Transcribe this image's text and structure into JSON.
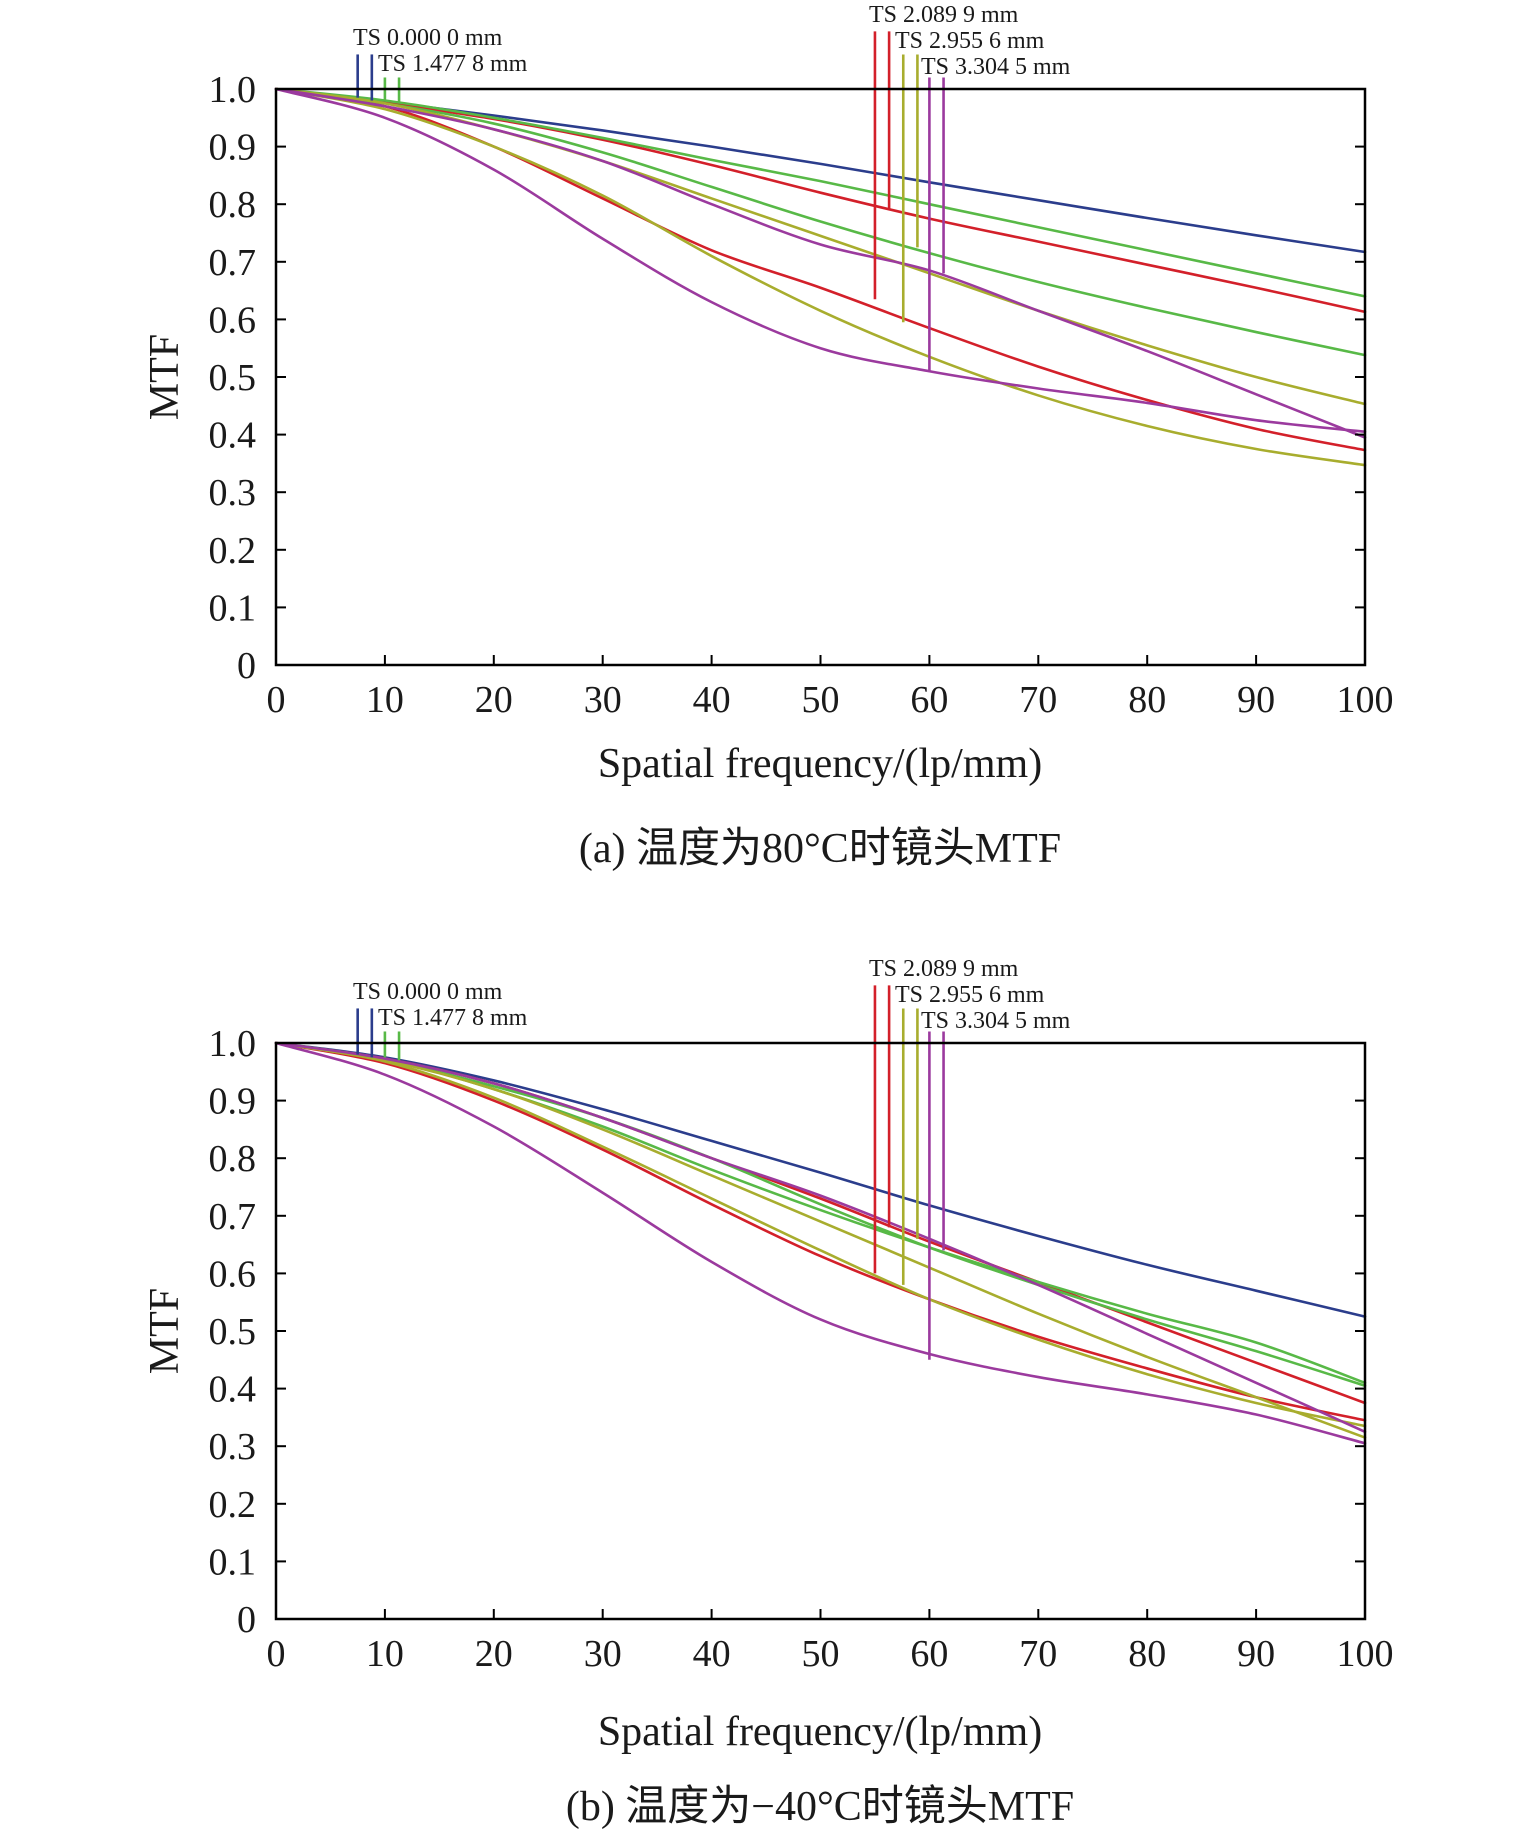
{
  "colors": {
    "blue": "#2b3d8c",
    "red": "#d3202a",
    "green": "#58b947",
    "olive": "#a8ad2e",
    "purple": "#9b3a9e"
  },
  "chart_data": [
    {
      "type": "line",
      "caption": "(a) 温度为80°C时镜头MTF",
      "xlabel": "Spatial frequency/(lp/mm)",
      "ylabel": "MTF",
      "xlim": [
        0,
        100
      ],
      "ylim": [
        0,
        1.0
      ],
      "xticks": [
        "0",
        "10",
        "20",
        "30",
        "40",
        "50",
        "60",
        "70",
        "80",
        "90",
        "100"
      ],
      "yticks": [
        "0",
        "0.1",
        "0.2",
        "0.3",
        "0.4",
        "0.5",
        "0.6",
        "0.7",
        "0.8",
        "0.9",
        "1.0"
      ],
      "grid": false,
      "legend_labels": [
        "TS 0.000 0 mm",
        "TS 1.477 8 mm",
        "TS 2.089 9 mm",
        "TS 2.955 6 mm",
        "TS 3.304 5 mm"
      ],
      "markers": [
        {
          "color": "blue",
          "x": 7.5,
          "y_top": 1.06,
          "y_bottom": 0.985
        },
        {
          "color": "blue",
          "x": 8.8,
          "y_top": 1.06,
          "y_bottom": 0.98
        },
        {
          "color": "green",
          "x": 10.0,
          "y_top": 1.02,
          "y_bottom": 0.98
        },
        {
          "color": "green",
          "x": 11.3,
          "y_top": 1.02,
          "y_bottom": 0.975
        },
        {
          "color": "red",
          "x": 55.0,
          "y_top": 1.1,
          "y_bottom": 0.635
        },
        {
          "color": "red",
          "x": 56.3,
          "y_top": 1.1,
          "y_bottom": 0.79
        },
        {
          "color": "olive",
          "x": 57.6,
          "y_top": 1.06,
          "y_bottom": 0.595
        },
        {
          "color": "olive",
          "x": 58.9,
          "y_top": 1.06,
          "y_bottom": 0.725
        },
        {
          "color": "purple",
          "x": 60.0,
          "y_top": 1.02,
          "y_bottom": 0.51
        },
        {
          "color": "purple",
          "x": 61.3,
          "y_top": 1.02,
          "y_bottom": 0.68
        }
      ],
      "x": [
        0,
        10,
        20,
        30,
        40,
        50,
        60,
        70,
        80,
        90,
        100
      ],
      "series": [
        {
          "color": "blue",
          "values": [
            1.0,
            0.978,
            0.954,
            0.928,
            0.9,
            0.87,
            0.838,
            0.807,
            0.776,
            0.746,
            0.717
          ]
        },
        {
          "color": "red",
          "values": [
            1.0,
            0.976,
            0.948,
            0.912,
            0.868,
            0.82,
            0.775,
            0.735,
            0.695,
            0.655,
            0.613
          ]
        },
        {
          "color": "red",
          "values": [
            1.0,
            0.97,
            0.9,
            0.81,
            0.72,
            0.655,
            0.585,
            0.518,
            0.46,
            0.41,
            0.373
          ]
        },
        {
          "color": "green",
          "values": [
            1.0,
            0.98,
            0.95,
            0.915,
            0.877,
            0.84,
            0.8,
            0.76,
            0.72,
            0.68,
            0.64
          ]
        },
        {
          "color": "green",
          "values": [
            1.0,
            0.975,
            0.94,
            0.89,
            0.83,
            0.77,
            0.715,
            0.665,
            0.62,
            0.578,
            0.538
          ]
        },
        {
          "color": "olive",
          "values": [
            1.0,
            0.975,
            0.93,
            0.875,
            0.81,
            0.745,
            0.68,
            0.615,
            0.555,
            0.5,
            0.453
          ]
        },
        {
          "color": "olive",
          "values": [
            1.0,
            0.965,
            0.9,
            0.815,
            0.71,
            0.615,
            0.535,
            0.468,
            0.415,
            0.375,
            0.347
          ]
        },
        {
          "color": "purple",
          "values": [
            1.0,
            0.97,
            0.93,
            0.875,
            0.8,
            0.73,
            0.685,
            0.615,
            0.545,
            0.47,
            0.395
          ]
        },
        {
          "color": "purple",
          "values": [
            1.0,
            0.95,
            0.86,
            0.74,
            0.63,
            0.55,
            0.51,
            0.48,
            0.455,
            0.425,
            0.405
          ]
        }
      ]
    },
    {
      "type": "line",
      "caption": "(b) 温度为−40°C时镜头MTF",
      "xlabel": "Spatial frequency/(lp/mm)",
      "ylabel": "MTF",
      "xlim": [
        0,
        100
      ],
      "ylim": [
        0,
        1.0
      ],
      "xticks": [
        "0",
        "10",
        "20",
        "30",
        "40",
        "50",
        "60",
        "70",
        "80",
        "90",
        "100"
      ],
      "yticks": [
        "0",
        "0.1",
        "0.2",
        "0.3",
        "0.4",
        "0.5",
        "0.6",
        "0.7",
        "0.8",
        "0.9",
        "1.0"
      ],
      "grid": false,
      "legend_labels": [
        "TS 0.000 0 mm",
        "TS 1.477 8 mm",
        "TS 2.089 9 mm",
        "TS 2.955 6 mm",
        "TS 3.304 5 mm"
      ],
      "markers": [
        {
          "color": "blue",
          "x": 7.5,
          "y_top": 1.06,
          "y_bottom": 0.98
        },
        {
          "color": "blue",
          "x": 8.8,
          "y_top": 1.06,
          "y_bottom": 0.975
        },
        {
          "color": "green",
          "x": 10.0,
          "y_top": 1.02,
          "y_bottom": 0.975
        },
        {
          "color": "green",
          "x": 11.3,
          "y_top": 1.02,
          "y_bottom": 0.97
        },
        {
          "color": "red",
          "x": 55.0,
          "y_top": 1.1,
          "y_bottom": 0.6
        },
        {
          "color": "red",
          "x": 56.3,
          "y_top": 1.1,
          "y_bottom": 0.68
        },
        {
          "color": "olive",
          "x": 57.6,
          "y_top": 1.06,
          "y_bottom": 0.58
        },
        {
          "color": "olive",
          "x": 58.9,
          "y_top": 1.06,
          "y_bottom": 0.66
        },
        {
          "color": "purple",
          "x": 60.0,
          "y_top": 1.02,
          "y_bottom": 0.45
        },
        {
          "color": "purple",
          "x": 61.3,
          "y_top": 1.02,
          "y_bottom": 0.64
        }
      ],
      "x": [
        0,
        10,
        20,
        30,
        40,
        50,
        60,
        70,
        80,
        90,
        100
      ],
      "series": [
        {
          "color": "blue",
          "values": [
            1.0,
            0.975,
            0.935,
            0.885,
            0.83,
            0.775,
            0.718,
            0.665,
            0.615,
            0.57,
            0.525
          ]
        },
        {
          "color": "red",
          "values": [
            1.0,
            0.973,
            0.93,
            0.87,
            0.8,
            0.73,
            0.655,
            0.585,
            0.515,
            0.445,
            0.375
          ]
        },
        {
          "color": "red",
          "values": [
            1.0,
            0.965,
            0.9,
            0.815,
            0.72,
            0.63,
            0.555,
            0.49,
            0.435,
            0.385,
            0.345
          ]
        },
        {
          "color": "green",
          "values": [
            1.0,
            0.972,
            0.92,
            0.855,
            0.78,
            0.71,
            0.645,
            0.585,
            0.53,
            0.48,
            0.41
          ]
        },
        {
          "color": "green",
          "values": [
            1.0,
            0.97,
            0.925,
            0.87,
            0.8,
            0.72,
            0.645,
            0.58,
            0.52,
            0.465,
            0.405
          ]
        },
        {
          "color": "olive",
          "values": [
            1.0,
            0.968,
            0.905,
            0.82,
            0.73,
            0.64,
            0.555,
            0.485,
            0.425,
            0.375,
            0.335
          ]
        },
        {
          "color": "olive",
          "values": [
            1.0,
            0.97,
            0.92,
            0.85,
            0.77,
            0.69,
            0.61,
            0.53,
            0.455,
            0.385,
            0.315
          ]
        },
        {
          "color": "purple",
          "values": [
            1.0,
            0.973,
            0.93,
            0.87,
            0.8,
            0.735,
            0.66,
            0.58,
            0.495,
            0.41,
            0.325
          ]
        },
        {
          "color": "purple",
          "values": [
            1.0,
            0.945,
            0.855,
            0.74,
            0.62,
            0.52,
            0.46,
            0.42,
            0.39,
            0.355,
            0.305
          ]
        }
      ]
    }
  ]
}
